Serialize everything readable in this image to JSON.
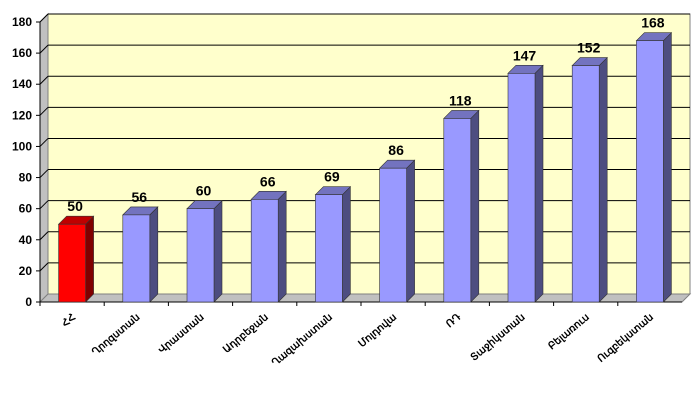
{
  "chart_data": {
    "type": "bar3d",
    "categories": [
      "ՀՀ",
      "Ղրղզստան",
      "Վրաստան",
      "Ադրբեջան",
      "Ղազախստան",
      "Մոլդովա",
      "ՌԴ",
      "Տաջիկստան",
      "Բելառուս",
      "Ուզբեկստան"
    ],
    "values": [
      50,
      56,
      60,
      66,
      69,
      86,
      118,
      147,
      152,
      168
    ],
    "colors": [
      "#ff0000",
      "#9999ff",
      "#9999ff",
      "#9999ff",
      "#9999ff",
      "#9999ff",
      "#9999ff",
      "#9999ff",
      "#9999ff",
      "#9999ff"
    ],
    "ylim": [
      0,
      180
    ],
    "yticks": [
      0,
      20,
      40,
      60,
      80,
      100,
      120,
      140,
      160,
      180
    ],
    "grid": true
  }
}
